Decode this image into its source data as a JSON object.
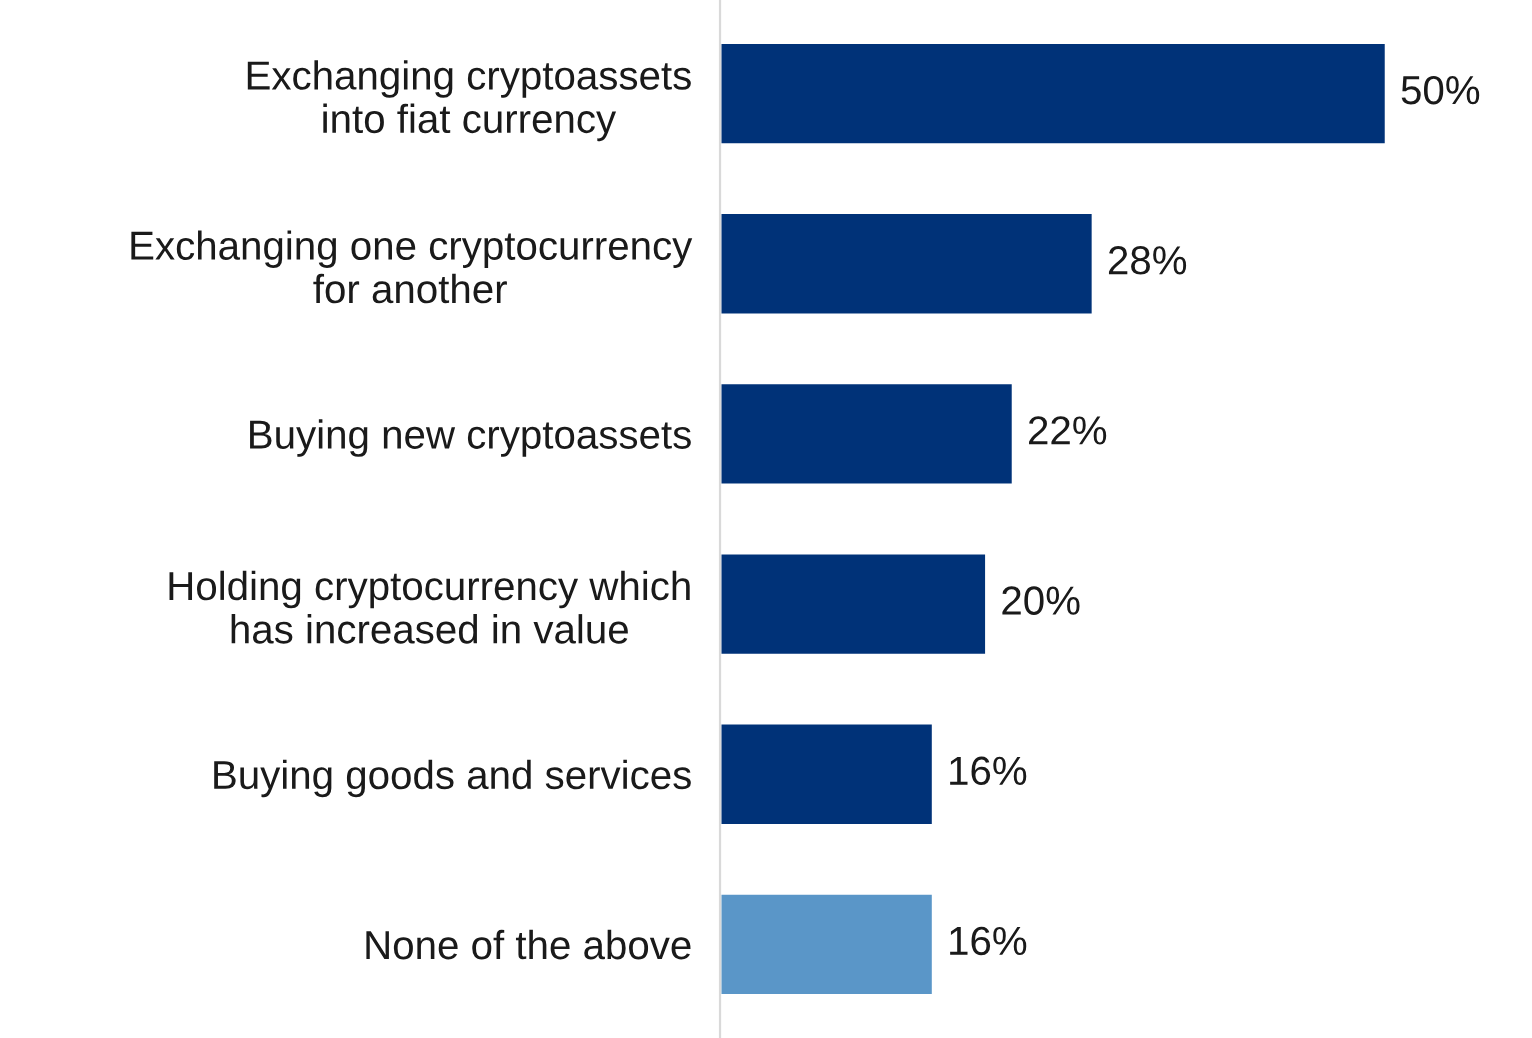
{
  "chart_data": {
    "type": "bar",
    "orientation": "horizontal",
    "categories": [
      "Exchanging cryptoassets\ninto fiat currency",
      "Exchanging one cryptocurrency\nfor another",
      "Buying new cryptoassets",
      "Holding cryptocurrency which\nhas increased in value",
      "Buying goods and services",
      "None of the above"
    ],
    "values": [
      50,
      28,
      22,
      20,
      16,
      16
    ],
    "value_labels": [
      "50%",
      "28%",
      "22%",
      "20%",
      "16%",
      "16%"
    ],
    "colors": [
      "#003278",
      "#003278",
      "#003278",
      "#003278",
      "#003278",
      "#5a96c8"
    ],
    "grid": false,
    "legend": false
  }
}
